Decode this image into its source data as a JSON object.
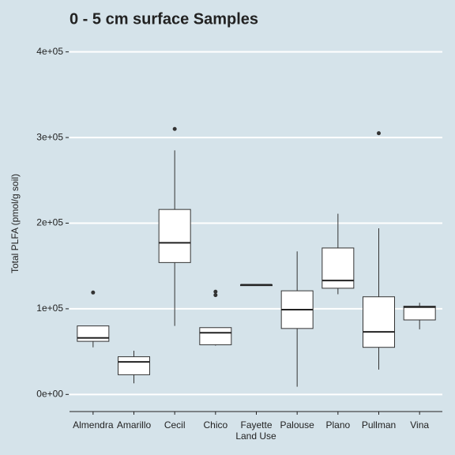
{
  "chart_data": {
    "type": "box",
    "title": "0 - 5 cm surface Samples",
    "x_label": "Land Use",
    "y_label": "Total PLFA (pmol/g soil)",
    "categories": [
      "Almendra",
      "Amarillo",
      "Cecil",
      "Chico",
      "Fayette",
      "Palouse",
      "Plano",
      "Pullman",
      "Vina"
    ],
    "min": [
      55000,
      13000,
      80000,
      57000,
      127000,
      9000,
      117000,
      29000,
      76000
    ],
    "q1": [
      62000,
      23000,
      154000,
      58000,
      127000,
      77000,
      124000,
      55000,
      87000
    ],
    "median": [
      66000,
      38000,
      177000,
      72000,
      128000,
      99000,
      133000,
      73000,
      102000
    ],
    "q3": [
      80000,
      44000,
      216000,
      78000,
      128000,
      121000,
      171000,
      114000,
      103000
    ],
    "max": [
      80000,
      51000,
      285000,
      78000,
      128000,
      167000,
      211000,
      194000,
      107000
    ],
    "outliers": [
      [
        119000
      ],
      [],
      [
        310000
      ],
      [
        120000,
        116000
      ],
      [],
      [],
      [],
      [
        305000
      ],
      []
    ],
    "ylim": [
      -20000,
      420000
    ],
    "yticks": [
      {
        "value": 0,
        "label": "0e+00"
      },
      {
        "value": 100000,
        "label": "1e+05"
      },
      {
        "value": 200000,
        "label": "2e+05"
      },
      {
        "value": 300000,
        "label": "3e+05"
      },
      {
        "value": 400000,
        "label": "4e+05"
      }
    ],
    "grid": true,
    "color": "#ffffff"
  }
}
